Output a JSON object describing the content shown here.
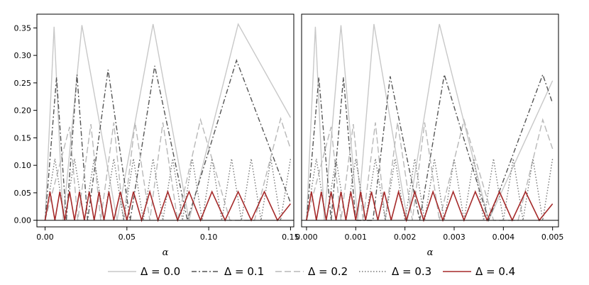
{
  "chart_data": [
    {
      "type": "line",
      "panel": "left",
      "xlabel": "α",
      "ylabel": "",
      "xlim": [
        -0.005,
        0.152
      ],
      "ylim": [
        -0.012,
        0.375
      ],
      "x_ticks": [
        "0.00",
        "0.05",
        "0.10",
        "0.15"
      ],
      "y_ticks": [
        "0.00",
        "0.05",
        "0.10",
        "0.15",
        "0.20",
        "0.25",
        "0.30",
        "0.35"
      ],
      "grid": false,
      "reference_line_y": 0.0,
      "series": [
        {
          "delta": 0.0,
          "style": "solid",
          "color": "#c8c8c8",
          "peak": 0.357,
          "x": [
            0.0,
            0.0055,
            0.011,
            0.0225,
            0.044,
            0.066,
            0.088,
            0.118,
            0.15
          ],
          "y": [
            0.0,
            0.352,
            0.0,
            0.355,
            0.0,
            0.357,
            0.0,
            0.357,
            0.187
          ]
        },
        {
          "delta": 0.1,
          "style": "dashdot",
          "color": "#555555",
          "peak": 0.29,
          "x": [
            0.0,
            0.007,
            0.013,
            0.0195,
            0.026,
            0.0385,
            0.052,
            0.067,
            0.087,
            0.117,
            0.15
          ],
          "y": [
            0.0,
            0.26,
            0.0,
            0.265,
            0.0,
            0.274,
            0.0,
            0.281,
            0.0,
            0.291,
            0.032
          ]
        },
        {
          "delta": 0.2,
          "style": "longdash",
          "color": "#b8b8b8",
          "peak": 0.185,
          "x": [
            0.0,
            0.015,
            0.02,
            0.028,
            0.034,
            0.042,
            0.048,
            0.055,
            0.064,
            0.072,
            0.081,
            0.095,
            0.113,
            0.128,
            0.144,
            0.15
          ],
          "y": [
            0.0,
            0.17,
            0.0,
            0.175,
            0.0,
            0.178,
            0.0,
            0.178,
            0.0,
            0.178,
            0.0,
            0.183,
            0.0,
            0.0,
            0.185,
            0.13
          ]
        },
        {
          "delta": 0.3,
          "style": "dotted",
          "color": "#777777",
          "peak": 0.112,
          "x": [
            0.0,
            0.006,
            0.012,
            0.018,
            0.024,
            0.03,
            0.036,
            0.042,
            0.048,
            0.054,
            0.06,
            0.066,
            0.072,
            0.078,
            0.084,
            0.09,
            0.096,
            0.102,
            0.108,
            0.114,
            0.12,
            0.126,
            0.132,
            0.138,
            0.144,
            0.15
          ],
          "y": [
            0.0,
            0.112,
            0.0,
            0.112,
            0.0,
            0.112,
            0.0,
            0.112,
            0.0,
            0.112,
            0.0,
            0.112,
            0.0,
            0.112,
            0.0,
            0.112,
            0.0,
            0.112,
            0.0,
            0.112,
            0.0,
            0.112,
            0.0,
            0.112,
            0.0,
            0.112
          ]
        },
        {
          "delta": 0.4,
          "style": "solid",
          "color": "#a52a2a",
          "peak": 0.052,
          "x": [
            0.0,
            0.003,
            0.006,
            0.009,
            0.012,
            0.015,
            0.018,
            0.021,
            0.024,
            0.027,
            0.03,
            0.033,
            0.036,
            0.039,
            0.042,
            0.046,
            0.05,
            0.054,
            0.059,
            0.064,
            0.069,
            0.075,
            0.081,
            0.088,
            0.095,
            0.102,
            0.11,
            0.118,
            0.126,
            0.134,
            0.142,
            0.15
          ],
          "y": [
            0.0,
            0.052,
            0.0,
            0.052,
            0.0,
            0.052,
            0.0,
            0.052,
            0.0,
            0.052,
            0.0,
            0.052,
            0.0,
            0.052,
            0.0,
            0.052,
            0.0,
            0.052,
            0.0,
            0.052,
            0.0,
            0.052,
            0.0,
            0.052,
            0.0,
            0.052,
            0.0,
            0.052,
            0.0,
            0.052,
            0.0,
            0.03
          ]
        }
      ]
    },
    {
      "type": "line",
      "panel": "right",
      "xlabel": "α",
      "ylabel": "",
      "xlim": [
        -0.0001,
        0.00512
      ],
      "ylim": [
        -0.012,
        0.375
      ],
      "x_ticks": [
        "0.000",
        "0.001",
        "0.002",
        "0.003",
        "0.004",
        "0.005"
      ],
      "y_ticks": [],
      "grid": false,
      "reference_line_y": 0.0,
      "series": [
        {
          "delta": 0.0,
          "style": "solid",
          "color": "#c8c8c8",
          "peak": 0.357,
          "x": [
            0.0,
            0.00018,
            0.00036,
            0.0007,
            0.00104,
            0.00137,
            0.00205,
            0.0027,
            0.0037,
            0.005
          ],
          "y": [
            0.0,
            0.352,
            0.0,
            0.355,
            0.0,
            0.357,
            0.0,
            0.357,
            0.0,
            0.254
          ]
        },
        {
          "delta": 0.1,
          "style": "dashdot",
          "color": "#555555",
          "peak": 0.265,
          "x": [
            0.0,
            0.00025,
            0.0005,
            0.00075,
            0.001,
            0.00135,
            0.0017,
            0.0023,
            0.0028,
            0.0037,
            0.0048,
            0.005
          ],
          "y": [
            0.0,
            0.26,
            0.0,
            0.26,
            0.0,
            0.0,
            0.262,
            0.0,
            0.265,
            0.0,
            0.265,
            0.213
          ]
        },
        {
          "delta": 0.2,
          "style": "longdash",
          "color": "#b8b8b8",
          "peak": 0.183,
          "x": [
            0.0,
            0.0005,
            0.0007,
            0.00095,
            0.00115,
            0.0014,
            0.0016,
            0.00185,
            0.00215,
            0.0024,
            0.0027,
            0.0032,
            0.0038,
            0.0043,
            0.0048,
            0.005
          ],
          "y": [
            0.0,
            0.17,
            0.0,
            0.175,
            0.0,
            0.178,
            0.0,
            0.178,
            0.0,
            0.178,
            0.0,
            0.182,
            0.0,
            0.0,
            0.183,
            0.13
          ]
        },
        {
          "delta": 0.3,
          "style": "dotted",
          "color": "#777777",
          "peak": 0.112,
          "x": [
            0.0,
            0.0002,
            0.0004,
            0.0006,
            0.0008,
            0.001,
            0.0012,
            0.0014,
            0.0016,
            0.0018,
            0.002,
            0.0022,
            0.0024,
            0.0026,
            0.0028,
            0.003,
            0.0032,
            0.0034,
            0.0036,
            0.0038,
            0.004,
            0.0042,
            0.0044,
            0.0046,
            0.0048,
            0.005
          ],
          "y": [
            0.0,
            0.112,
            0.0,
            0.112,
            0.0,
            0.112,
            0.0,
            0.112,
            0.0,
            0.112,
            0.0,
            0.112,
            0.0,
            0.112,
            0.0,
            0.112,
            0.0,
            0.112,
            0.0,
            0.112,
            0.0,
            0.112,
            0.0,
            0.112,
            0.0,
            0.112
          ]
        },
        {
          "delta": 0.4,
          "style": "solid",
          "color": "#a52a2a",
          "peak": 0.052,
          "x": [
            0.0,
            0.0001,
            0.0002,
            0.0003,
            0.0004,
            0.0005,
            0.0006,
            0.0007,
            0.0008,
            0.0009,
            0.001,
            0.0011,
            0.0012,
            0.00132,
            0.00145,
            0.00158,
            0.00172,
            0.00187,
            0.00203,
            0.0022,
            0.00238,
            0.00257,
            0.00277,
            0.00298,
            0.0032,
            0.00343,
            0.00367,
            0.00392,
            0.00418,
            0.00445,
            0.00473,
            0.005
          ],
          "y": [
            0.0,
            0.052,
            0.0,
            0.052,
            0.0,
            0.052,
            0.0,
            0.052,
            0.0,
            0.052,
            0.0,
            0.052,
            0.0,
            0.052,
            0.0,
            0.052,
            0.0,
            0.052,
            0.0,
            0.052,
            0.0,
            0.052,
            0.0,
            0.052,
            0.0,
            0.052,
            0.0,
            0.052,
            0.0,
            0.052,
            0.0,
            0.03
          ]
        }
      ]
    }
  ],
  "legend": {
    "placement": "bottom",
    "items": [
      {
        "label": "Δ = 0.0",
        "style": "solid",
        "color": "#c8c8c8"
      },
      {
        "label": "Δ = 0.1",
        "style": "dashdot",
        "color": "#555555"
      },
      {
        "label": "Δ = 0.2",
        "style": "longdash",
        "color": "#b8b8b8"
      },
      {
        "label": "Δ = 0.3",
        "style": "dotted",
        "color": "#777777"
      },
      {
        "label": "Δ = 0.4",
        "style": "solid",
        "color": "#a52a2a"
      }
    ]
  }
}
